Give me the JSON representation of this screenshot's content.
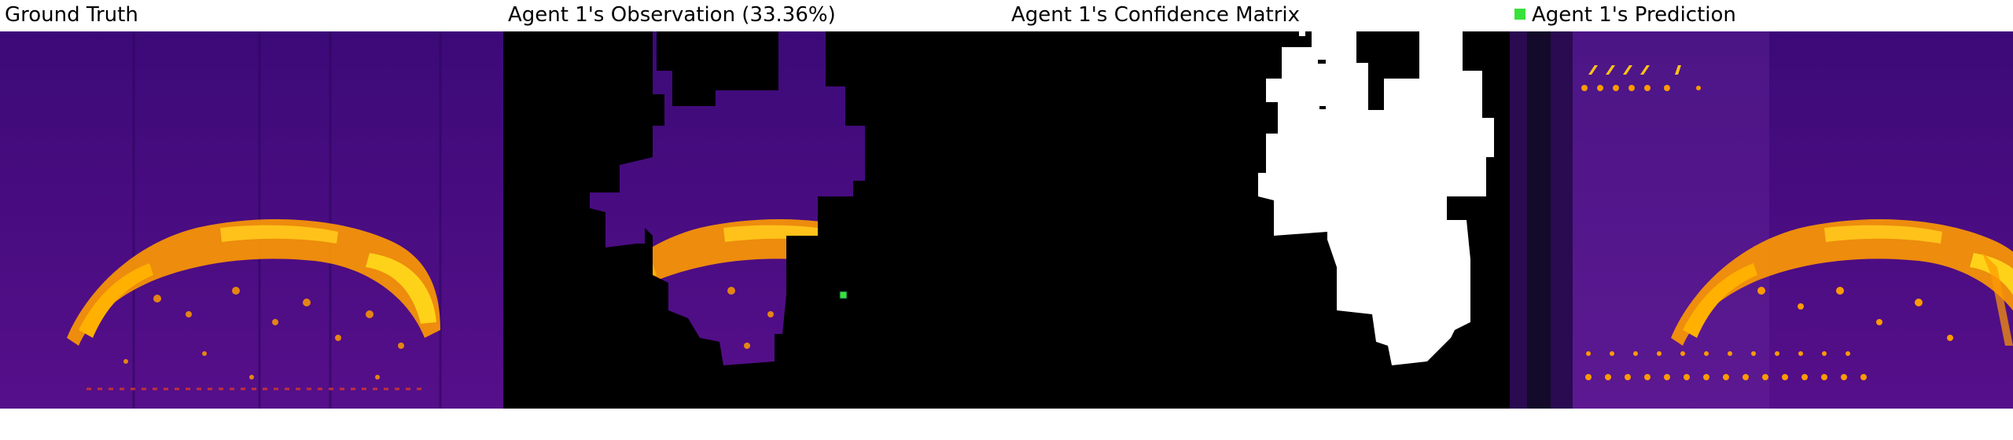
{
  "panels": {
    "ground_truth": {
      "title": "Ground Truth"
    },
    "observation": {
      "title": "Agent 1's Observation (33.36%)"
    },
    "confidence": {
      "title": "Agent 1's Confidence Matrix"
    },
    "prediction": {
      "title": "Agent 1's Prediction"
    }
  },
  "colors": {
    "background": "#4a0d82",
    "hot_orange": "#ff9a00",
    "hot_yellow": "#ffd21a",
    "mask_black": "#000000",
    "confidence_white": "#ffffff",
    "agent_marker": "#37e23a"
  },
  "icons": {
    "agent_marker": "green-square-icon"
  }
}
